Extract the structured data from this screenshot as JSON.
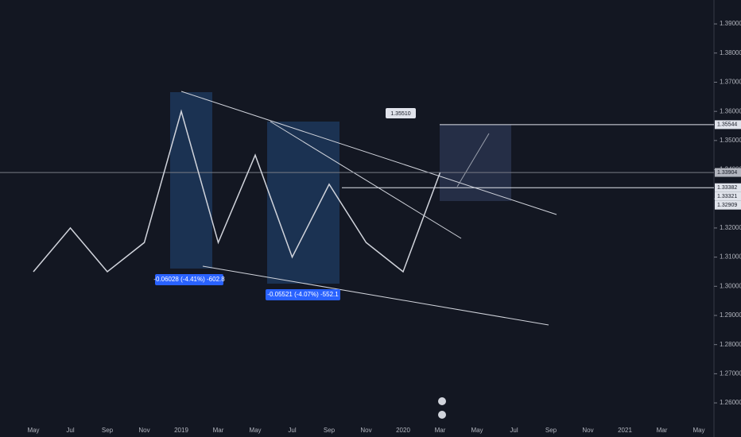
{
  "chart_data": {
    "type": "line",
    "categories": [
      "May",
      "Jul",
      "Sep",
      "Nov",
      "2019",
      "Mar",
      "May",
      "Jul",
      "Sep",
      "Nov",
      "2020",
      "Mar",
      "May",
      "Jul",
      "Sep",
      "Nov",
      "2021",
      "Mar",
      "May"
    ],
    "series": [
      {
        "color": "#d1d4dc",
        "values": [
          1.305,
          1.32,
          1.305,
          1.315,
          1.36,
          1.315,
          1.345,
          1.31,
          1.335,
          1.315,
          1.305,
          1.339,
          null,
          null,
          null,
          null,
          null,
          null,
          null
        ]
      }
    ],
    "ylim": [
      1.2483,
      1.3982
    ],
    "yticks": [
      {
        "value": 1.26,
        "label": "1.26000"
      },
      {
        "value": 1.27,
        "label": "1.27000"
      },
      {
        "value": 1.28,
        "label": "1.28000"
      },
      {
        "value": 1.29,
        "label": "1.29000"
      },
      {
        "value": 1.3,
        "label": "1.30000"
      },
      {
        "value": 1.31,
        "label": "1.31000"
      },
      {
        "value": 1.32,
        "label": "1.32000"
      },
      {
        "value": 1.33,
        "label": "1.33000"
      },
      {
        "value": 1.34,
        "label": "1.34000"
      },
      {
        "value": 1.35,
        "label": "1.35000"
      },
      {
        "value": 1.36,
        "label": "1.36000"
      },
      {
        "value": 1.37,
        "label": "1.37000"
      },
      {
        "value": 1.38,
        "label": "1.38000"
      },
      {
        "value": 1.39,
        "label": "1.39000"
      }
    ],
    "grid": false,
    "price_labels": [
      1.35544,
      1.33904,
      1.33382,
      1.33321,
      1.32909
    ],
    "annotations": [
      "-0.06028 (-4.41%) -602.8",
      "-0.05521 (-4.07%) -552.1",
      "1.35510"
    ]
  }
}
